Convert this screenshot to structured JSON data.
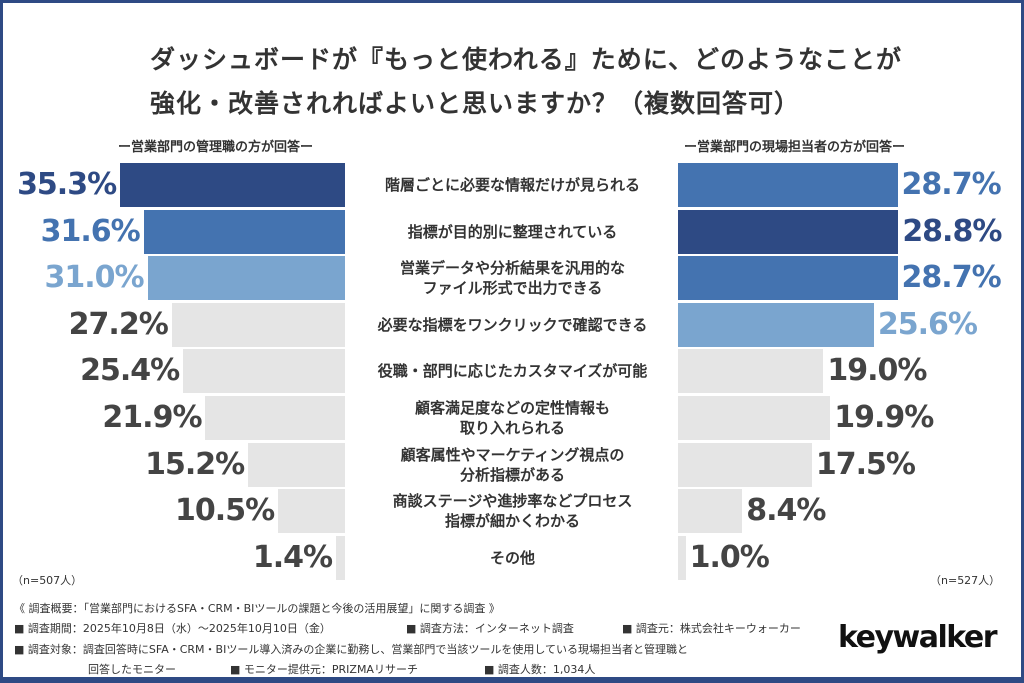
{
  "chart_data": {
    "type": "bar",
    "title": [
      "ダッシュボードが『もっと使われる』ために、どのようなことが",
      "強化・改善されればよいと思いますか？（複数回答可）"
    ],
    "categories": [
      "階層ごとに必要な情報だけが見られる",
      "指標が目的別に整理されている",
      "営業データや分析結果を汎用的な\nファイル形式で出力できる",
      "必要な指標をワンクリックで確認できる",
      "役職・部門に応じたカスタマイズが可能",
      "顧客満足度などの定性情報も\n取り入れられる",
      "顧客属性やマーケティング視点の\n分析指標がある",
      "商談ステージや進捗率などプロセス\n指標が細かくわかる",
      "その他"
    ],
    "series": [
      {
        "name": "ー営業部門の管理職の方が回答ー",
        "n": "（n=507人）",
        "values": [
          35.3,
          31.6,
          31.0,
          27.2,
          25.4,
          21.9,
          15.2,
          10.5,
          1.4
        ]
      },
      {
        "name": "ー営業部門の現場担当者の方が回答ー",
        "n": "（n=527人）",
        "values": [
          28.7,
          28.8,
          28.7,
          25.6,
          19.0,
          19.9,
          17.5,
          8.4,
          1.0
        ]
      }
    ],
    "unit": "%",
    "colors": {
      "rank1": "#2e4a84",
      "rank2": "#4473b0",
      "rank3": "#7aa5cf",
      "other": "#e5e5e5",
      "other_text": "#444444"
    }
  },
  "footer": {
    "overview": "《 調査概要：「営業部門におけるSFA・CRM・BIツールの課題と今後の活用展望」に関する調査 》",
    "period": "■ 調査期間：2025年10月8日（水）～2025年10月10日（金）",
    "method": "■ 調査方法：インターネット調査",
    "source": "■ 調査元：株式会社キーウォーカー",
    "target": "■ 調査対象：調査回答時にSFA・CRM・BIツール導入済みの企業に勤務し、営業部門で当該ツールを使用している現場担当者と管理職と",
    "target2": "回答したモニター",
    "provider": "■ モニター提供元：PRIZMAリサーチ",
    "count": "■ 調査人数：1,034人",
    "logo": "keywalker"
  }
}
